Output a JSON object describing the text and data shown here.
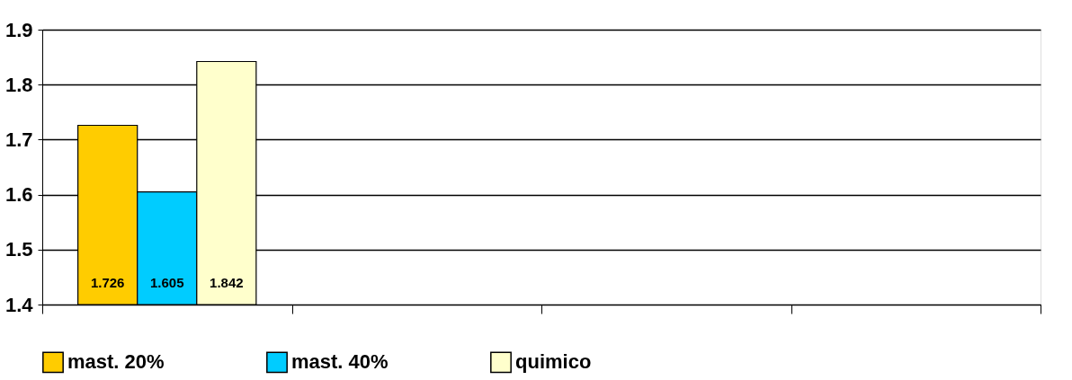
{
  "chart_data": {
    "type": "bar",
    "categories": [
      null,
      null,
      null,
      null
    ],
    "series": [
      {
        "name": "mast. 20%",
        "color": "#ffcc00",
        "values": [
          1.726,
          null,
          null,
          null
        ]
      },
      {
        "name": "mast. 40%",
        "color": "#00ccff",
        "values": [
          1.605,
          null,
          null,
          null
        ]
      },
      {
        "name": "quimico",
        "color": "#ffffcc",
        "values": [
          1.842,
          null,
          null,
          null
        ]
      }
    ],
    "ylim": [
      1.4,
      1.9
    ],
    "yticks": [
      1.4,
      1.5,
      1.6,
      1.7,
      1.8,
      1.9
    ],
    "grid": "y",
    "legend": "bottom",
    "data_labels": true
  }
}
